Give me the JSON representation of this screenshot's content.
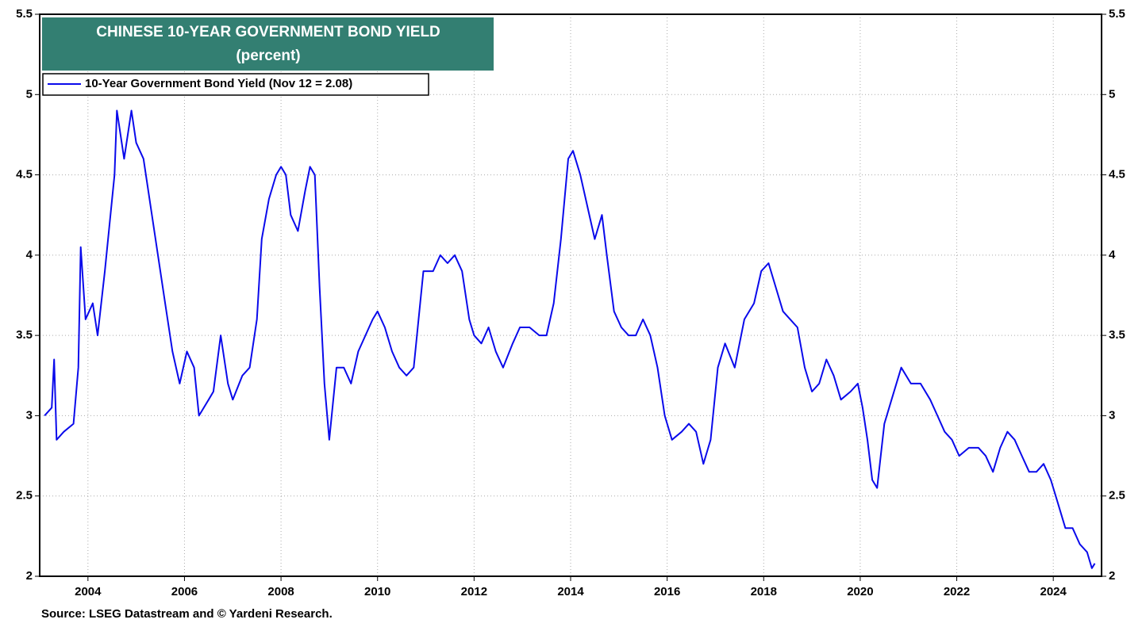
{
  "chart_data": {
    "type": "line",
    "title": "CHINESE 10-YEAR GOVERNMENT BOND YIELD",
    "subtitle": "(percent)",
    "source": "Source: LSEG Datastream and © Yardeni Research.",
    "x": [
      2003.1,
      2003.25,
      2003.3,
      2003.35,
      2003.5,
      2003.7,
      2003.8,
      2003.85,
      2003.95,
      2004.1,
      2004.2,
      2004.35,
      2004.45,
      2004.55,
      2004.6,
      2004.75,
      2004.9,
      2005.0,
      2005.15,
      2005.3,
      2005.45,
      2005.6,
      2005.75,
      2005.9,
      2006.05,
      2006.2,
      2006.3,
      2006.5,
      2006.6,
      2006.75,
      2006.9,
      2007.0,
      2007.2,
      2007.35,
      2007.5,
      2007.6,
      2007.75,
      2007.9,
      2008.0,
      2008.1,
      2008.2,
      2008.35,
      2008.5,
      2008.6,
      2008.7,
      2008.8,
      2008.9,
      2009.0,
      2009.15,
      2009.3,
      2009.45,
      2009.6,
      2009.75,
      2009.9,
      2010.0,
      2010.15,
      2010.3,
      2010.45,
      2010.6,
      2010.75,
      2010.85,
      2010.95,
      2011.15,
      2011.3,
      2011.45,
      2011.6,
      2011.75,
      2011.9,
      2012.0,
      2012.15,
      2012.3,
      2012.45,
      2012.6,
      2012.8,
      2012.95,
      2013.15,
      2013.35,
      2013.5,
      2013.65,
      2013.8,
      2013.95,
      2014.05,
      2014.2,
      2014.35,
      2014.5,
      2014.65,
      2014.75,
      2014.9,
      2015.05,
      2015.2,
      2015.35,
      2015.5,
      2015.65,
      2015.8,
      2015.95,
      2016.1,
      2016.3,
      2016.45,
      2016.6,
      2016.75,
      2016.9,
      2017.05,
      2017.2,
      2017.4,
      2017.6,
      2017.8,
      2017.95,
      2018.1,
      2018.25,
      2018.4,
      2018.55,
      2018.7,
      2018.85,
      2019.0,
      2019.15,
      2019.3,
      2019.45,
      2019.6,
      2019.8,
      2019.95,
      2020.05,
      2020.15,
      2020.25,
      2020.35,
      2020.5,
      2020.65,
      2020.85,
      2021.05,
      2021.25,
      2021.45,
      2021.6,
      2021.75,
      2021.9,
      2022.05,
      2022.25,
      2022.45,
      2022.6,
      2022.75,
      2022.9,
      2023.05,
      2023.2,
      2023.35,
      2023.5,
      2023.65,
      2023.8,
      2023.95,
      2024.1,
      2024.25,
      2024.4,
      2024.55,
      2024.7,
      2024.8,
      2024.86
    ],
    "series": [
      {
        "name": "10-Year Government Bond Yield (Nov 12 = 2.08)",
        "color": "#0a0aeb",
        "values": [
          3.0,
          3.05,
          3.35,
          2.85,
          2.9,
          2.95,
          3.3,
          4.05,
          3.6,
          3.7,
          3.5,
          3.9,
          4.2,
          4.5,
          4.9,
          4.6,
          4.9,
          4.7,
          4.6,
          4.3,
          4.0,
          3.7,
          3.4,
          3.2,
          3.4,
          3.3,
          3.0,
          3.1,
          3.15,
          3.5,
          3.2,
          3.1,
          3.25,
          3.3,
          3.6,
          4.1,
          4.35,
          4.5,
          4.55,
          4.5,
          4.25,
          4.15,
          4.4,
          4.55,
          4.5,
          3.8,
          3.2,
          2.85,
          3.3,
          3.3,
          3.2,
          3.4,
          3.5,
          3.6,
          3.65,
          3.55,
          3.4,
          3.3,
          3.25,
          3.3,
          3.6,
          3.9,
          3.9,
          4.0,
          3.95,
          4.0,
          3.9,
          3.6,
          3.5,
          3.45,
          3.55,
          3.4,
          3.3,
          3.45,
          3.55,
          3.55,
          3.5,
          3.5,
          3.7,
          4.1,
          4.6,
          4.65,
          4.5,
          4.3,
          4.1,
          4.25,
          4.0,
          3.65,
          3.55,
          3.5,
          3.5,
          3.6,
          3.5,
          3.3,
          3.0,
          2.85,
          2.9,
          2.95,
          2.9,
          2.7,
          2.85,
          3.3,
          3.45,
          3.3,
          3.6,
          3.7,
          3.9,
          3.95,
          3.8,
          3.65,
          3.6,
          3.55,
          3.3,
          3.15,
          3.2,
          3.35,
          3.25,
          3.1,
          3.15,
          3.2,
          3.05,
          2.85,
          2.6,
          2.55,
          2.95,
          3.1,
          3.3,
          3.2,
          3.2,
          3.1,
          3.0,
          2.9,
          2.85,
          2.75,
          2.8,
          2.8,
          2.75,
          2.65,
          2.8,
          2.9,
          2.85,
          2.75,
          2.65,
          2.65,
          2.7,
          2.6,
          2.45,
          2.3,
          2.3,
          2.2,
          2.15,
          2.05,
          2.08
        ]
      }
    ],
    "xlim": [
      2003,
      2025
    ],
    "xticks": [
      2004,
      2006,
      2008,
      2010,
      2012,
      2014,
      2016,
      2018,
      2020,
      2022,
      2024
    ],
    "ylim": [
      2.0,
      5.5
    ],
    "yticks": [
      2.0,
      2.5,
      3.0,
      3.5,
      4.0,
      4.5,
      5.0,
      5.5
    ],
    "grid": true
  }
}
